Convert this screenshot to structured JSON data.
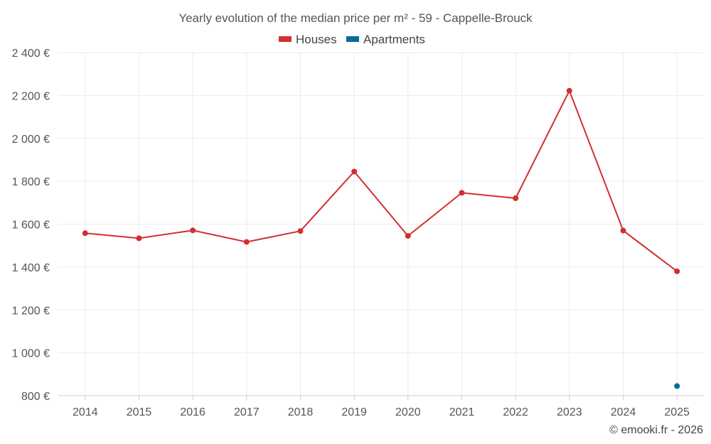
{
  "chart_data": {
    "type": "line",
    "title": "Yearly evolution of the median price per m² - 59 - Cappelle-Brouck",
    "categories": [
      "2014",
      "2015",
      "2016",
      "2017",
      "2018",
      "2019",
      "2020",
      "2021",
      "2022",
      "2023",
      "2024",
      "2025"
    ],
    "series": [
      {
        "name": "Houses",
        "color": "#d32f2f",
        "values": [
          1558,
          1534,
          1571,
          1517,
          1568,
          1845,
          1545,
          1746,
          1721,
          2222,
          1570,
          1380
        ]
      },
      {
        "name": "Apartments",
        "color": "#0b6a9b",
        "values": [
          null,
          null,
          null,
          null,
          null,
          null,
          null,
          null,
          null,
          null,
          null,
          845
        ]
      }
    ],
    "ylim": [
      800,
      2400
    ],
    "yticks": [
      800,
      1000,
      1200,
      1400,
      1600,
      1800,
      2000,
      2200,
      2400
    ],
    "ytick_labels": [
      "800 €",
      "1 000 €",
      "1 200 €",
      "1 400 €",
      "1 600 €",
      "1 800 €",
      "2 000 €",
      "2 200 €",
      "2 400 €"
    ],
    "legend_position": "top-center",
    "grid": true
  },
  "credit": "© emooki.fr - 2026"
}
